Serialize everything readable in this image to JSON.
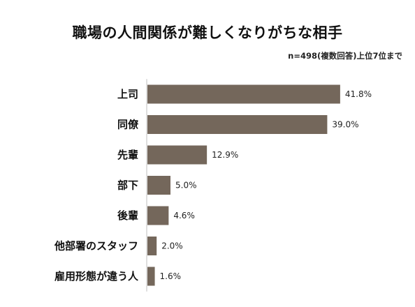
{
  "chart_data": {
    "type": "bar",
    "orientation": "horizontal",
    "title": "職場の人間関係が難しくなりがちな相手",
    "note": "n=498(複数回答)上位7位まで",
    "categories": [
      "上司",
      "同僚",
      "先輩",
      "部下",
      "後輩",
      "他部署のスタッフ",
      "雇用形態が違う人"
    ],
    "values": [
      41.8,
      39.0,
      12.9,
      5.0,
      4.6,
      2.0,
      1.6
    ],
    "value_labels": [
      "41.8%",
      "39.0%",
      "12.9%",
      "5.0%",
      "4.6%",
      "2.0%",
      "1.6%"
    ],
    "unit": "%",
    "bar_color": "#74675b",
    "grid": false,
    "legend": "none"
  }
}
